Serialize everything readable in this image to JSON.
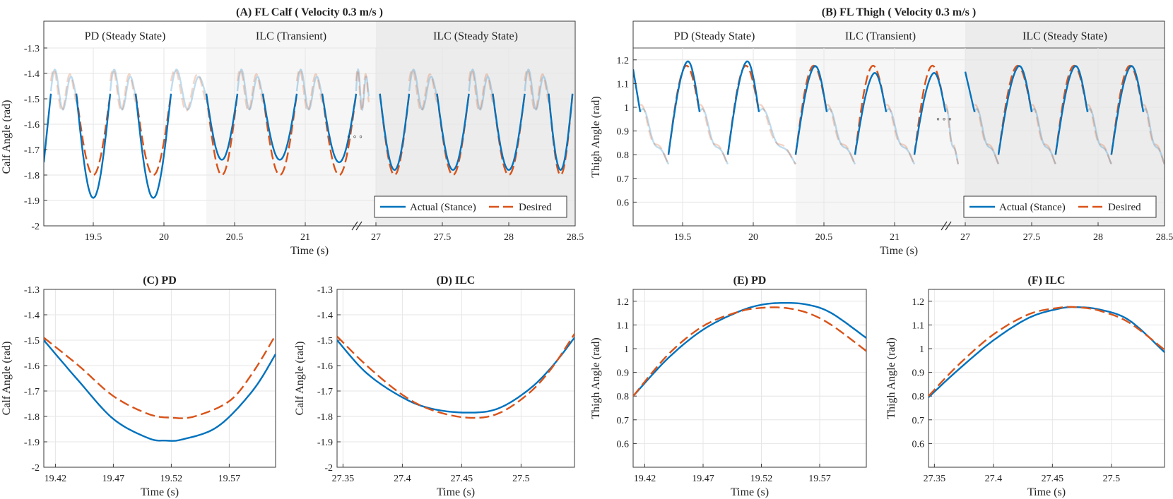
{
  "chart_data": [
    {
      "id": "A",
      "type": "line",
      "title": "(A) FL Calf ( Velocity 0.3 m/s )",
      "xlabel": "Time   (s)",
      "ylabel": "Calf Angle  (rad)",
      "ylim": [
        -2,
        -1.3
      ],
      "yticks": [
        -2,
        -1.9,
        -1.8,
        -1.7,
        -1.6,
        -1.5,
        -1.4,
        -1.3
      ],
      "ytick_labels": [
        "-2",
        "-1.9",
        "-1.8",
        "-1.7",
        "-1.6",
        "-1.5",
        "-1.4",
        "-1.3"
      ],
      "broken_axis": true,
      "segments": [
        {
          "xlim": [
            19.15,
            21.5
          ],
          "xticks": [
            19.5,
            20,
            20.5,
            21
          ],
          "xtick_labels": [
            "19.5",
            "20",
            "20.5",
            "21"
          ]
        },
        {
          "xlim": [
            27.0,
            28.5
          ],
          "xticks": [
            27,
            27.5,
            28,
            28.5
          ],
          "xtick_labels": [
            "27",
            "27.5",
            "28",
            "28.5"
          ]
        }
      ],
      "regions": [
        {
          "label": "PD (Steady State)",
          "range": [
            19.15,
            20.3
          ],
          "shade": "#ffffff"
        },
        {
          "label": "ILC (Transient)",
          "range": [
            20.3,
            21.5
          ],
          "shade": "#f6f6f6"
        },
        {
          "label": "ILC (Steady State)",
          "range": [
            27.0,
            28.5
          ],
          "shade": "#ececec"
        }
      ],
      "gap_marker": "◦ ◦ ◦",
      "swing_band": [
        -1.49,
        -1.38
      ],
      "stance_cycles": [
        {
          "start": 19.15,
          "end": 19.2,
          "actual_min": -1.75,
          "desired_min": -1.72,
          "partial": "tail"
        },
        {
          "start": 19.38,
          "end": 19.62,
          "actual_min": -1.89,
          "desired_min": -1.8
        },
        {
          "start": 19.8,
          "end": 20.05,
          "actual_min": -1.89,
          "desired_min": -1.8
        },
        {
          "start": 20.3,
          "end": 20.52,
          "actual_min": -1.74,
          "desired_min": -1.8
        },
        {
          "start": 20.7,
          "end": 20.94,
          "actual_min": -1.74,
          "desired_min": -1.8
        },
        {
          "start": 21.12,
          "end": 21.36,
          "actual_min": -1.75,
          "desired_min": -1.8
        },
        {
          "start": 27.03,
          "end": 27.25,
          "actual_min": -1.78,
          "desired_min": -1.8
        },
        {
          "start": 27.46,
          "end": 27.7,
          "actual_min": -1.78,
          "desired_min": -1.8
        },
        {
          "start": 27.88,
          "end": 28.12,
          "actual_min": -1.78,
          "desired_min": -1.8
        },
        {
          "start": 28.3,
          "end": 28.48,
          "actual_min": -1.78,
          "desired_min": -1.8
        }
      ],
      "legend": {
        "position": "bottom-right",
        "entries": [
          "Actual (Stance)",
          "Desired"
        ]
      },
      "series": [
        {
          "name": "Actual (Stance)",
          "color": "#0072BD",
          "style": "solid"
        },
        {
          "name": "Desired",
          "color": "#D95319",
          "style": "dashed"
        }
      ]
    },
    {
      "id": "B",
      "type": "line",
      "title": "(B) FL Thigh ( Velocity 0.3 m/s )",
      "xlabel": "Time   (s)",
      "ylabel": "Thigh Angle  (rad)",
      "ylim": [
        0.5,
        1.25
      ],
      "yticks": [
        0.6,
        0.7,
        0.8,
        0.9,
        1.0,
        1.1,
        1.2
      ],
      "ytick_labels": [
        "0.6",
        "0.7",
        "0.8",
        "0.9",
        "1",
        "1.1",
        "1.2"
      ],
      "broken_axis": true,
      "segments": [
        {
          "xlim": [
            19.15,
            21.5
          ],
          "xticks": [
            19.5,
            20,
            20.5,
            21
          ],
          "xtick_labels": [
            "19.5",
            "20",
            "20.5",
            "21"
          ]
        },
        {
          "xlim": [
            27.0,
            28.5
          ],
          "xticks": [
            27,
            27.5,
            28,
            28.5
          ],
          "xtick_labels": [
            "27",
            "27.5",
            "28",
            "28.5"
          ]
        }
      ],
      "regions": [
        {
          "label": "PD (Steady State)",
          "range": [
            19.15,
            20.3
          ],
          "shade": "#ffffff"
        },
        {
          "label": "ILC (Transient)",
          "range": [
            20.3,
            21.5
          ],
          "shade": "#f6f6f6"
        },
        {
          "label": "ILC (Steady State)",
          "range": [
            27.0,
            28.5
          ],
          "shade": "#ececec"
        }
      ],
      "gap_marker": "◦ ◦ ◦",
      "swing_band": [
        0.74,
        0.98
      ],
      "stance_cycles": [
        {
          "start": 19.15,
          "end": 19.2,
          "actual_max": 1.16,
          "desired_max": 1.14,
          "partial": "tail"
        },
        {
          "start": 19.4,
          "end": 19.62,
          "actual_max": 1.19,
          "desired_max": 1.17
        },
        {
          "start": 19.82,
          "end": 20.04,
          "actual_max": 1.19,
          "desired_max": 1.17
        },
        {
          "start": 20.3,
          "end": 20.52,
          "actual_max": 1.17,
          "desired_max": 1.17
        },
        {
          "start": 20.72,
          "end": 20.94,
          "actual_max": 1.14,
          "desired_max": 1.17
        },
        {
          "start": 21.14,
          "end": 21.36,
          "actual_max": 1.14,
          "desired_max": 1.17
        },
        {
          "start": 27.0,
          "end": 27.07,
          "actual_max": 1.15,
          "desired_max": 1.15,
          "partial": "tail"
        },
        {
          "start": 27.25,
          "end": 27.5,
          "actual_max": 1.17,
          "desired_max": 1.17
        },
        {
          "start": 27.68,
          "end": 27.92,
          "actual_max": 1.17,
          "desired_max": 1.17
        },
        {
          "start": 28.1,
          "end": 28.34,
          "actual_max": 1.17,
          "desired_max": 1.17
        }
      ],
      "legend": {
        "position": "bottom-right",
        "entries": [
          "Actual (Stance)",
          "Desired"
        ]
      },
      "series": [
        {
          "name": "Actual (Stance)",
          "color": "#0072BD",
          "style": "solid"
        },
        {
          "name": "Desired",
          "color": "#D95319",
          "style": "dashed"
        }
      ]
    },
    {
      "id": "C",
      "type": "line",
      "title": "(C) PD",
      "xlabel": "Time   (s)",
      "ylabel": "Calf Angle  (rad)",
      "xlim": [
        19.41,
        19.61
      ],
      "xticks": [
        19.42,
        19.47,
        19.52,
        19.57
      ],
      "xtick_labels": [
        "19.42",
        "19.47",
        "19.52",
        "19.57"
      ],
      "ylim": [
        -2,
        -1.3
      ],
      "yticks": [
        -2,
        -1.9,
        -1.8,
        -1.7,
        -1.6,
        -1.5,
        -1.4,
        -1.3
      ],
      "ytick_labels": [
        "-2",
        "-1.9",
        "-1.8",
        "-1.7",
        "-1.6",
        "-1.5",
        "-1.4",
        "-1.3"
      ],
      "series": [
        {
          "name": "Actual (Stance)",
          "x": [
            19.41,
            19.44,
            19.47,
            19.5,
            19.515,
            19.53,
            19.56,
            19.59,
            19.61
          ],
          "y": [
            -1.5,
            -1.66,
            -1.81,
            -1.885,
            -1.895,
            -1.89,
            -1.84,
            -1.7,
            -1.555
          ],
          "color": "#0072BD",
          "style": "solid"
        },
        {
          "name": "Desired",
          "x": [
            19.41,
            19.44,
            19.47,
            19.5,
            19.52,
            19.54,
            19.57,
            19.59,
            19.61
          ],
          "y": [
            -1.49,
            -1.6,
            -1.72,
            -1.79,
            -1.805,
            -1.8,
            -1.74,
            -1.63,
            -1.48
          ],
          "color": "#D95319",
          "style": "dashed"
        }
      ]
    },
    {
      "id": "D",
      "type": "line",
      "title": "(D) ILC",
      "xlabel": "Time   (s)",
      "ylabel": "Calf Angle  (rad)",
      "xlim": [
        27.345,
        27.545
      ],
      "xticks": [
        27.35,
        27.4,
        27.45,
        27.5
      ],
      "xtick_labels": [
        "27.35",
        "27.4",
        "27.45",
        "27.5"
      ],
      "ylim": [
        -2,
        -1.3
      ],
      "yticks": [
        -2,
        -1.9,
        -1.8,
        -1.7,
        -1.6,
        -1.5,
        -1.4,
        -1.3
      ],
      "ytick_labels": [
        "-2",
        "-1.9",
        "-1.8",
        "-1.7",
        "-1.6",
        "-1.5",
        "-1.4",
        "-1.3"
      ],
      "series": [
        {
          "name": "Actual (Stance)",
          "x": [
            27.345,
            27.37,
            27.4,
            27.425,
            27.455,
            27.48,
            27.505,
            27.525,
            27.545
          ],
          "y": [
            -1.5,
            -1.63,
            -1.725,
            -1.77,
            -1.785,
            -1.77,
            -1.7,
            -1.61,
            -1.49
          ],
          "color": "#0072BD",
          "style": "solid"
        },
        {
          "name": "Desired",
          "x": [
            27.345,
            27.37,
            27.4,
            27.425,
            27.455,
            27.48,
            27.505,
            27.525,
            27.545
          ],
          "y": [
            -1.485,
            -1.6,
            -1.715,
            -1.775,
            -1.805,
            -1.79,
            -1.715,
            -1.615,
            -1.475
          ],
          "color": "#D95319",
          "style": "dashed"
        }
      ]
    },
    {
      "id": "E",
      "type": "line",
      "title": "(E) PD",
      "xlabel": "Time   (s)",
      "ylabel": "Thigh Angle  (rad)",
      "xlim": [
        19.41,
        19.61
      ],
      "xticks": [
        19.42,
        19.47,
        19.52,
        19.57
      ],
      "xtick_labels": [
        "19.42",
        "19.47",
        "19.52",
        "19.57"
      ],
      "ylim": [
        0.5,
        1.25
      ],
      "yticks": [
        0.6,
        0.7,
        0.8,
        0.9,
        1.0,
        1.1,
        1.2
      ],
      "ytick_labels": [
        "0.6",
        "0.7",
        "0.8",
        "0.9",
        "1",
        "1.1",
        "1.2"
      ],
      "series": [
        {
          "name": "Actual (Stance)",
          "x": [
            19.41,
            19.44,
            19.47,
            19.5,
            19.52,
            19.54,
            19.56,
            19.58,
            19.61
          ],
          "y": [
            0.8,
            0.96,
            1.08,
            1.155,
            1.185,
            1.193,
            1.185,
            1.15,
            1.045
          ],
          "color": "#0072BD",
          "style": "solid"
        },
        {
          "name": "Desired",
          "x": [
            19.41,
            19.44,
            19.47,
            19.5,
            19.52,
            19.54,
            19.56,
            19.58,
            19.61
          ],
          "y": [
            0.8,
            0.975,
            1.095,
            1.155,
            1.172,
            1.172,
            1.15,
            1.1,
            0.99
          ],
          "color": "#D95319",
          "style": "dashed"
        }
      ]
    },
    {
      "id": "F",
      "type": "line",
      "title": "(F) ILC",
      "xlabel": "Time   (s)",
      "ylabel": "Thigh Angle  (rad)",
      "xlim": [
        27.345,
        27.545
      ],
      "xticks": [
        27.35,
        27.4,
        27.45,
        27.5
      ],
      "xtick_labels": [
        "27.35",
        "27.4",
        "27.45",
        "27.5"
      ],
      "ylim": [
        0.5,
        1.25
      ],
      "yticks": [
        0.6,
        0.7,
        0.8,
        0.9,
        1.0,
        1.1,
        1.2
      ],
      "ytick_labels": [
        "0.6",
        "0.7",
        "0.8",
        "0.9",
        "1",
        "1.1",
        "1.2"
      ],
      "series": [
        {
          "name": "Actual (Stance)",
          "x": [
            27.345,
            27.37,
            27.4,
            27.43,
            27.455,
            27.47,
            27.49,
            27.515,
            27.545
          ],
          "y": [
            0.795,
            0.91,
            1.035,
            1.13,
            1.168,
            1.175,
            1.165,
            1.12,
            0.985
          ],
          "color": "#0072BD",
          "style": "solid"
        },
        {
          "name": "Desired",
          "x": [
            27.345,
            27.37,
            27.4,
            27.43,
            27.455,
            27.47,
            27.49,
            27.515,
            27.545
          ],
          "y": [
            0.8,
            0.93,
            1.06,
            1.145,
            1.172,
            1.175,
            1.16,
            1.11,
            0.995
          ],
          "color": "#D95319",
          "style": "dashed"
        }
      ]
    }
  ]
}
